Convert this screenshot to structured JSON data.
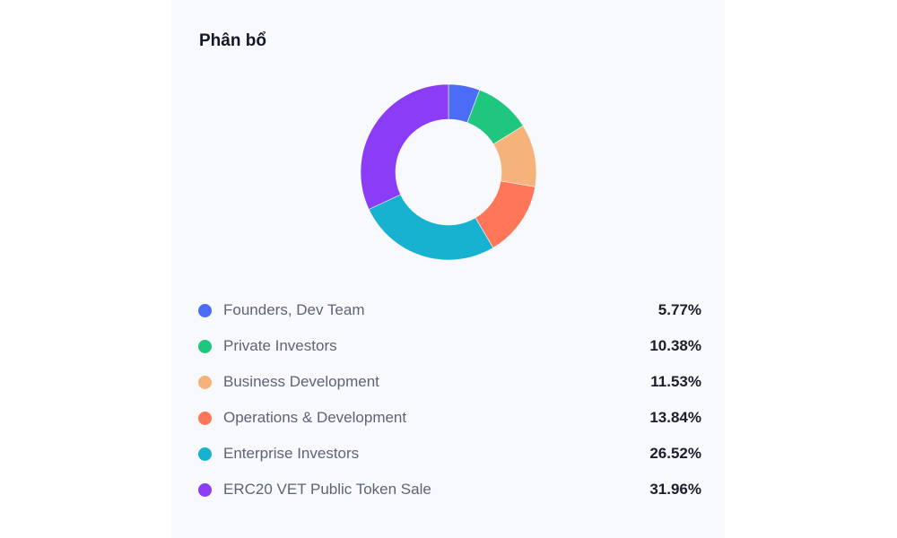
{
  "panel": {
    "title": "Phân bổ"
  },
  "chart_data": {
    "type": "pie",
    "variant": "donut",
    "title": "Phân bổ",
    "categories": [
      "Founders, Dev Team",
      "Private Investors",
      "Business Development",
      "Operations & Development",
      "Enterprise Investors",
      "ERC20 VET Public Token Sale"
    ],
    "values": [
      5.77,
      10.38,
      11.53,
      13.84,
      26.52,
      31.96
    ],
    "value_labels": [
      "5.77%",
      "10.38%",
      "11.53%",
      "13.84%",
      "26.52%",
      "31.96%"
    ],
    "colors": [
      "#4a6cf7",
      "#1fc77e",
      "#f5b27a",
      "#ff7659",
      "#17b2cf",
      "#8b3cf7"
    ],
    "legend_position": "bottom",
    "start_angle": "top, clockwise"
  },
  "legend": {
    "items": [
      {
        "label": "Founders, Dev Team",
        "value": "5.77%",
        "color": "#4a6cf7"
      },
      {
        "label": "Private Investors",
        "value": "10.38%",
        "color": "#1fc77e"
      },
      {
        "label": "Business Development",
        "value": "11.53%",
        "color": "#f5b27a"
      },
      {
        "label": "Operations & Development",
        "value": "13.84%",
        "color": "#ff7659"
      },
      {
        "label": "Enterprise Investors",
        "value": "26.52%",
        "color": "#17b2cf"
      },
      {
        "label": "ERC20 VET Public Token Sale",
        "value": "31.96%",
        "color": "#8b3cf7"
      }
    ]
  }
}
